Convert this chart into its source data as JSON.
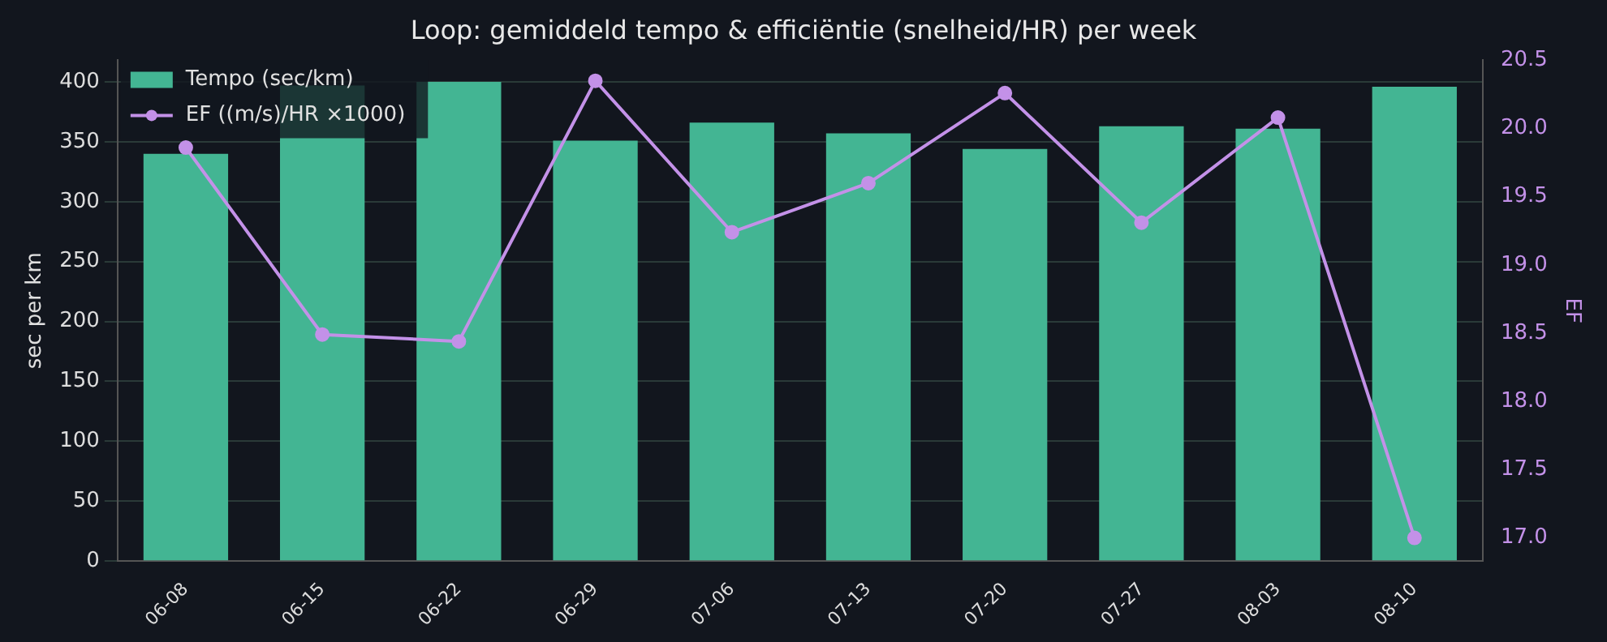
{
  "chart_data": {
    "type": "bar",
    "title": "Loop: gemiddeld tempo & efficiëntie (snelheid/HR) per week",
    "ylabel": "sec per km",
    "y2label": "EF",
    "categories": [
      "06-08",
      "06-15",
      "06-22",
      "06-29",
      "07-06",
      "07-13",
      "07-20",
      "07-27",
      "08-03",
      "08-10"
    ],
    "series": [
      {
        "name": "Tempo (sec/km)",
        "color": "#43b593",
        "values": [
          340,
          397,
          400,
          351,
          366,
          357,
          344,
          363,
          361,
          396
        ]
      },
      {
        "name": "EF ((m/s)/HR ×1000)",
        "type": "line",
        "axis": "y2",
        "color": "#c391e8",
        "marker": "circle",
        "values": [
          19.86,
          18.49,
          18.44,
          20.35,
          19.24,
          19.6,
          20.26,
          19.31,
          20.08,
          17.0
        ]
      }
    ],
    "ylim": [
      0,
      418
    ],
    "yticks": [
      0,
      50,
      100,
      150,
      200,
      250,
      300,
      350,
      400
    ],
    "y2lim": [
      16.83,
      20.5
    ],
    "y2ticks": [
      {
        "value": 17,
        "label": "17.0"
      },
      17.5,
      {
        "value": 18,
        "label": "18.0"
      },
      18.5,
      {
        "value": 19,
        "label": "19.0"
      },
      19.5,
      {
        "value": 20,
        "label": "20.0"
      },
      20.5
    ],
    "grid": "y",
    "legend": "top left"
  }
}
